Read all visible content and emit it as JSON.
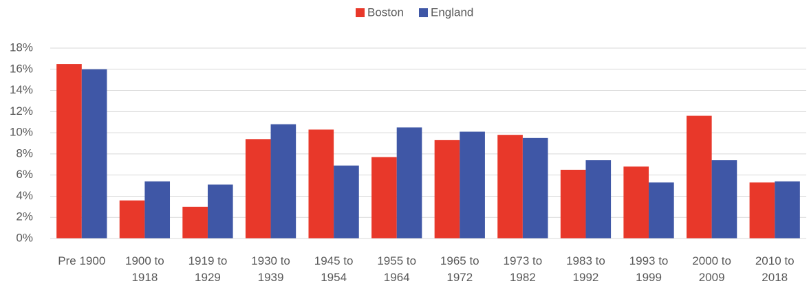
{
  "chart_data": {
    "type": "bar",
    "categories": [
      "Pre 1900",
      "1900 to 1918",
      "1919 to 1929",
      "1930 to 1939",
      "1945 to 1954",
      "1955 to 1964",
      "1965 to 1972",
      "1973 to 1982",
      "1983 to 1992",
      "1993 to 1999",
      "2000 to 2009",
      "2010 to 2018"
    ],
    "series": [
      {
        "name": "Boston",
        "color": "#e8382a",
        "values": [
          16.5,
          3.6,
          3.0,
          9.4,
          10.3,
          7.7,
          9.3,
          9.8,
          6.5,
          6.8,
          11.6,
          5.3
        ]
      },
      {
        "name": "England",
        "color": "#3f57a6",
        "values": [
          16.0,
          5.4,
          5.1,
          10.8,
          6.9,
          10.5,
          10.1,
          9.5,
          7.4,
          5.3,
          7.4,
          5.4
        ]
      }
    ],
    "ylim": [
      0,
      18
    ],
    "yticks": [
      {
        "value": 0,
        "label": "0%"
      },
      {
        "value": 2,
        "label": "2%"
      },
      {
        "value": 4,
        "label": "4%"
      },
      {
        "value": 6,
        "label": "6%"
      },
      {
        "value": 8,
        "label": "8%"
      },
      {
        "value": 10,
        "label": "10%"
      },
      {
        "value": 12,
        "label": "12%"
      },
      {
        "value": 14,
        "label": "14%"
      },
      {
        "value": 16,
        "label": "16%"
      },
      {
        "value": 18,
        "label": "18%"
      }
    ],
    "grid": true,
    "legend": "top"
  }
}
